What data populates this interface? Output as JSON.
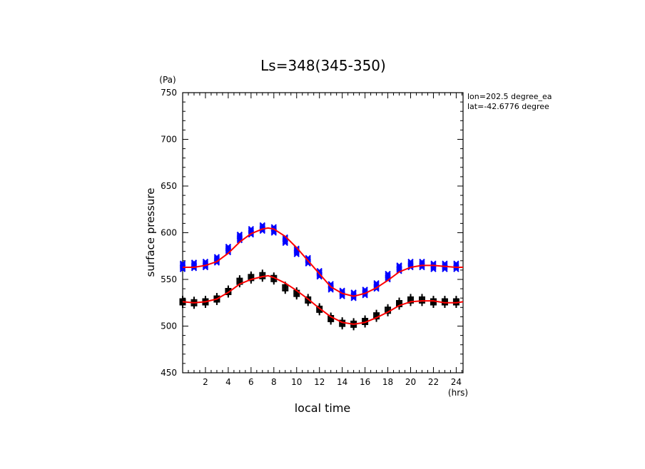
{
  "chart_data": {
    "type": "scatter",
    "title": "Ls=348(345-350)",
    "xlabel": "local time",
    "ylabel": "surface pressure",
    "x_unit": "(hrs)",
    "y_unit": "(Pa)",
    "xlim": [
      0,
      24.6
    ],
    "ylim": [
      450,
      750
    ],
    "x_ticks": [
      2,
      4,
      6,
      8,
      10,
      12,
      14,
      16,
      18,
      20,
      22,
      24
    ],
    "y_ticks": [
      450,
      500,
      550,
      600,
      650,
      700,
      750
    ],
    "annotations": [
      "lon=202.5 degree_ea",
      "lat=-42.6776 degree"
    ],
    "grid": false,
    "series": [
      {
        "marker": "x",
        "color": "#0000ff",
        "x": [
          0.0,
          1.0,
          2.0,
          3.0,
          4.0,
          5.0,
          6.0,
          7.0,
          8.0,
          9.0,
          10.0,
          11.0,
          12.0,
          13.0,
          14.0,
          15.0,
          16.0,
          17.0,
          18.0,
          19.0,
          20.0,
          21.0,
          22.0,
          23.0,
          24.0
        ],
        "values": [
          564,
          565,
          566,
          571,
          582,
          595,
          601,
          605,
          603,
          592,
          580,
          570,
          556,
          542,
          535,
          533,
          536,
          543,
          553,
          562,
          566,
          566,
          564,
          564,
          564
        ]
      },
      {
        "marker": "+",
        "color": "#000000",
        "x": [
          0.0,
          1.0,
          2.0,
          3.0,
          4.0,
          5.0,
          6.0,
          7.0,
          8.0,
          9.0,
          10.0,
          11.0,
          12.0,
          13.0,
          14.0,
          15.0,
          16.0,
          17.0,
          18.0,
          19.0,
          20.0,
          21.0,
          22.0,
          23.0,
          24.0
        ],
        "values": [
          526,
          525,
          526,
          529,
          537,
          548,
          552,
          554,
          551,
          541,
          535,
          528,
          518,
          508,
          503,
          502,
          505,
          511,
          517,
          524,
          528,
          528,
          526,
          526,
          526
        ]
      },
      {
        "type": "line",
        "color": "#ff0000",
        "x": [
          0.0,
          1.0,
          2.0,
          3.0,
          4.0,
          5.0,
          6.0,
          7.0,
          7.5,
          8.0,
          9.0,
          10.0,
          11.0,
          12.0,
          13.0,
          14.0,
          15.0,
          16.0,
          17.0,
          18.0,
          19.0,
          20.0,
          21.0,
          22.0,
          23.0,
          24.0,
          24.6
        ],
        "values": [
          563,
          563,
          565,
          569,
          578,
          590,
          599,
          604,
          605,
          604,
          596,
          584,
          570,
          556,
          542,
          535,
          532,
          535,
          541,
          549,
          558,
          563,
          565,
          565,
          564,
          563,
          563
        ]
      },
      {
        "type": "line",
        "color": "#ff0000",
        "x": [
          0.0,
          1.0,
          2.0,
          3.0,
          4.0,
          5.0,
          6.0,
          7.0,
          7.5,
          8.0,
          9.0,
          10.0,
          11.0,
          12.0,
          13.0,
          14.0,
          15.0,
          16.0,
          17.0,
          18.0,
          19.0,
          20.0,
          21.0,
          22.0,
          23.0,
          24.0,
          24.6
        ],
        "values": [
          526,
          525,
          526,
          529,
          536,
          545,
          550,
          553,
          554,
          552,
          546,
          538,
          529,
          519,
          510,
          504,
          502,
          504,
          509,
          515,
          522,
          526,
          527,
          527,
          525,
          525,
          526
        ]
      }
    ]
  }
}
